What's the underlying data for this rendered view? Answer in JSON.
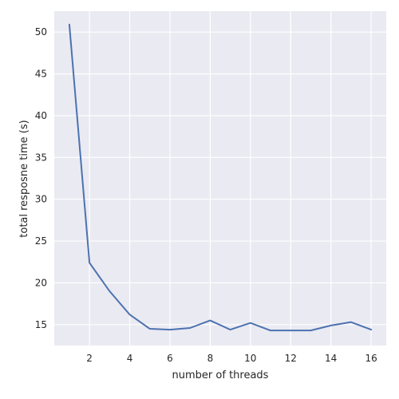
{
  "chart_data": {
    "type": "line",
    "title": "",
    "xlabel": "number of threads",
    "ylabel": "total resposne time (s)",
    "xlim": [
      0.25,
      16.75
    ],
    "ylim": [
      12.5,
      52.5
    ],
    "xticks": [
      2,
      4,
      6,
      8,
      10,
      12,
      14,
      16
    ],
    "yticks": [
      15,
      20,
      25,
      30,
      35,
      40,
      45,
      50
    ],
    "grid": true,
    "series": [
      {
        "x": [
          1,
          2,
          3,
          4,
          5,
          6,
          7,
          8,
          9,
          10,
          11,
          12,
          13,
          14,
          15,
          16
        ],
        "values": [
          50.9,
          22.4,
          19.0,
          16.2,
          14.5,
          14.4,
          14.6,
          15.5,
          14.4,
          15.2,
          14.3,
          14.3,
          14.3,
          14.9,
          15.3,
          14.4
        ]
      }
    ]
  },
  "colors": {
    "background": "#eaeaf2",
    "grid": "#ffffff",
    "line": "#4c72b0",
    "text": "#262626"
  }
}
